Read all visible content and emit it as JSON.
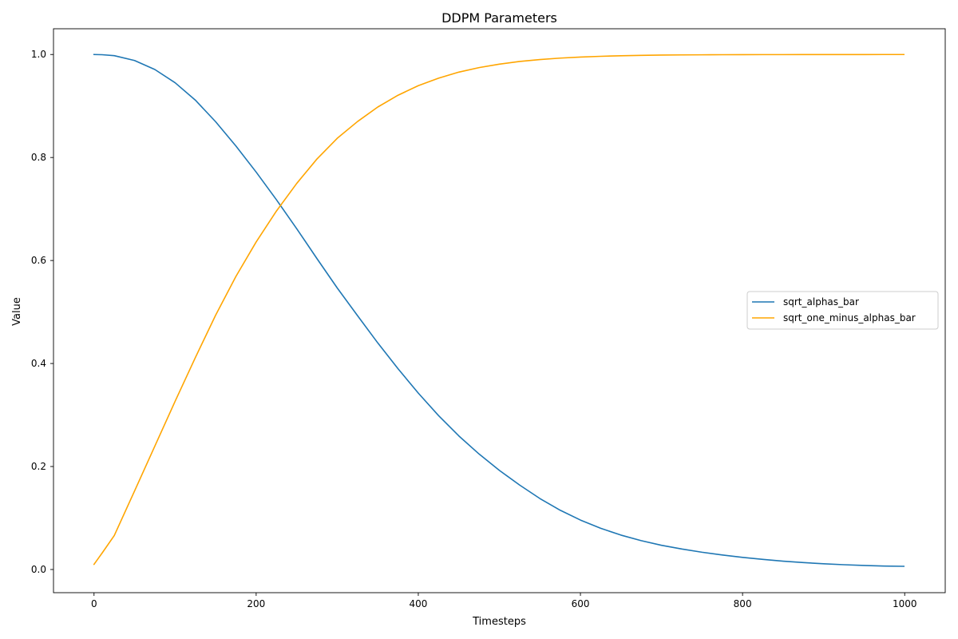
{
  "chart_data": {
    "type": "line",
    "title": "DDPM Parameters",
    "xlabel": "Timesteps",
    "ylabel": "Value",
    "xlim": [
      -50,
      1050
    ],
    "ylim": [
      -0.045,
      1.05
    ],
    "xticks": [
      0,
      200,
      400,
      600,
      800,
      1000
    ],
    "xtick_labels": [
      "0",
      "200",
      "400",
      "600",
      "800",
      "1000"
    ],
    "yticks": [
      0.0,
      0.2,
      0.4,
      0.6,
      0.8,
      1.0
    ],
    "ytick_labels": [
      "0.0",
      "0.2",
      "0.4",
      "0.6",
      "0.8",
      "1.0"
    ],
    "grid": false,
    "legend_position": "center-right",
    "x": [
      0,
      10,
      25,
      50,
      75,
      100,
      125,
      150,
      175,
      200,
      225,
      250,
      275,
      300,
      325,
      350,
      375,
      400,
      425,
      450,
      475,
      500,
      525,
      550,
      575,
      600,
      625,
      650,
      675,
      700,
      725,
      750,
      775,
      800,
      825,
      850,
      875,
      900,
      925,
      950,
      975,
      999
    ],
    "series": [
      {
        "name": "sqrt_alphas_bar",
        "color": "#1f77b4",
        "values": [
          1.0,
          0.9996,
          0.9978,
          0.9883,
          0.9709,
          0.9452,
          0.9114,
          0.8695,
          0.8224,
          0.7717,
          0.718,
          0.6618,
          0.6037,
          0.5467,
          0.493,
          0.44,
          0.3898,
          0.3426,
          0.2988,
          0.2594,
          0.2242,
          0.1925,
          0.164,
          0.1378,
          0.1151,
          0.096,
          0.08,
          0.0668,
          0.056,
          0.047,
          0.0398,
          0.0335,
          0.0282,
          0.0235,
          0.0196,
          0.0162,
          0.0134,
          0.0111,
          0.0093,
          0.0079,
          0.0067,
          0.0062
        ]
      },
      {
        "name": "sqrt_one_minus_alphas_bar",
        "color": "#ffa500",
        "values": [
          0.01,
          0.032,
          0.066,
          0.1525,
          0.2395,
          0.3265,
          0.4115,
          0.4938,
          0.569,
          0.636,
          0.696,
          0.7496,
          0.7971,
          0.8373,
          0.8698,
          0.898,
          0.9209,
          0.9395,
          0.954,
          0.9658,
          0.9746,
          0.9813,
          0.9865,
          0.9902,
          0.993,
          0.995,
          0.9965,
          0.9976,
          0.9984,
          0.9989,
          0.9992,
          0.9994,
          0.9996,
          0.9997,
          0.9998,
          0.9998,
          0.9999,
          0.9999,
          0.9999,
          0.9999,
          1.0,
          1.0
        ]
      }
    ]
  }
}
